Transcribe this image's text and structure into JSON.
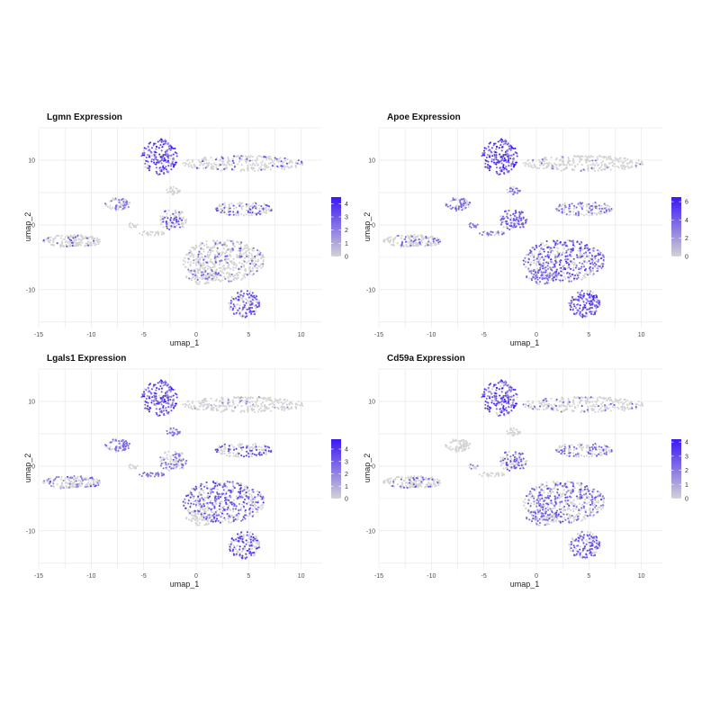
{
  "figure": {
    "background": "#ffffff",
    "low_color": "#d3d3d3",
    "high_color": "#3a17f5"
  },
  "chart_data": [
    {
      "type": "scatter",
      "title": "Lgmn Expression",
      "xlabel": "umap_1",
      "ylabel": "umap_2",
      "xlim": [
        -15,
        12
      ],
      "ylim": [
        -16,
        15
      ],
      "xticks": [
        -15,
        -10,
        -5,
        0,
        5,
        10
      ],
      "yticks": [
        -10,
        0,
        10
      ],
      "grid": true,
      "legend": {
        "position": "right",
        "min": 0,
        "max": 4.5,
        "ticks": [
          0,
          1,
          2,
          3,
          4
        ]
      },
      "cluster_expression": [
        0.15,
        0.1,
        0.9,
        0.55,
        0.25,
        0.4,
        0.35,
        0.3,
        0.15,
        0.1,
        0.5,
        0.15
      ]
    },
    {
      "type": "scatter",
      "title": "Apoe Expression",
      "xlabel": "umap_1",
      "ylabel": "umap_2",
      "xlim": [
        -15,
        12
      ],
      "ylim": [
        -16,
        15
      ],
      "xticks": [
        -15,
        -10,
        -5,
        0,
        5,
        10
      ],
      "yticks": [
        -10,
        0,
        10
      ],
      "grid": true,
      "legend": {
        "position": "right",
        "min": 0,
        "max": 6.5,
        "ticks": [
          0,
          2,
          4,
          6
        ]
      },
      "cluster_expression": [
        0.05,
        0.2,
        1.0,
        0.35,
        0.9,
        0.5,
        0.45,
        0.35,
        0.5,
        0.4,
        0.75,
        0.6
      ]
    },
    {
      "type": "scatter",
      "title": "Lgals1 Expression",
      "xlabel": "umap_1",
      "ylabel": "umap_2",
      "xlim": [
        -15,
        12
      ],
      "ylim": [
        -16,
        15
      ],
      "xticks": [
        -15,
        -10,
        -5,
        0,
        5,
        10
      ],
      "yticks": [
        -10,
        0,
        10
      ],
      "grid": true,
      "legend": {
        "position": "right",
        "min": 0,
        "max": 4.8,
        "ticks": [
          0,
          1,
          2,
          3,
          4
        ]
      },
      "cluster_expression": [
        0.05,
        0.2,
        0.9,
        0.45,
        0.35,
        0.5,
        0.55,
        0.35,
        0.5,
        0.25,
        0.45,
        0.08
      ]
    },
    {
      "type": "scatter",
      "title": "Cd59a Expression",
      "xlabel": "umap_1",
      "ylabel": "umap_2",
      "xlim": [
        -15,
        12
      ],
      "ylim": [
        -16,
        15
      ],
      "xticks": [
        -15,
        -10,
        -5,
        0,
        5,
        10
      ],
      "yticks": [
        -10,
        0,
        10
      ],
      "grid": true,
      "legend": {
        "position": "right",
        "min": 0,
        "max": 4.2,
        "ticks": [
          0,
          1,
          2,
          3,
          4
        ]
      },
      "cluster_expression": [
        0.1,
        0.15,
        0.85,
        0.3,
        0.55,
        0.3,
        0.35,
        0.3,
        0.4,
        0.25,
        0.55,
        0.5
      ]
    }
  ],
  "clusters": [
    {
      "id": "top-right-strip",
      "cx": 4.5,
      "cy": 9.5,
      "rx": 6,
      "ry": 1.2,
      "n": 280
    },
    {
      "id": "left-far",
      "cx": -11.8,
      "cy": -2.5,
      "rx": 2.8,
      "ry": 1.0,
      "n": 170
    },
    {
      "id": "top-hook",
      "cx": -3.5,
      "cy": 10.5,
      "rx": 1.7,
      "ry": 2.8,
      "n": 200
    },
    {
      "id": "left-mid",
      "cx": -7.5,
      "cy": 3.2,
      "rx": 1.2,
      "ry": 1.0,
      "n": 70
    },
    {
      "id": "small-top",
      "cx": -2.2,
      "cy": 5.3,
      "rx": 0.7,
      "ry": 0.6,
      "n": 30
    },
    {
      "id": "center-upper",
      "cx": -2.2,
      "cy": 0.8,
      "rx": 1.4,
      "ry": 1.6,
      "n": 110
    },
    {
      "id": "center-tail",
      "cx": -4.2,
      "cy": -1.3,
      "rx": 1.3,
      "ry": 0.4,
      "n": 30
    },
    {
      "id": "right-mid",
      "cx": 4.5,
      "cy": 2.5,
      "rx": 2.8,
      "ry": 1.1,
      "n": 140
    },
    {
      "id": "big-central",
      "cx": 2.6,
      "cy": -5.5,
      "rx": 3.9,
      "ry": 3.3,
      "n": 520
    },
    {
      "id": "central-lower-tail",
      "cx": 0.5,
      "cy": -8,
      "rx": 1.6,
      "ry": 1.2,
      "n": 80
    },
    {
      "id": "bottom-right",
      "cx": 4.6,
      "cy": -12.2,
      "rx": 1.5,
      "ry": 2.1,
      "n": 170
    },
    {
      "id": "center-left-tail",
      "cx": -6.1,
      "cy": -0.1,
      "rx": 0.6,
      "ry": 0.4,
      "n": 12
    }
  ]
}
